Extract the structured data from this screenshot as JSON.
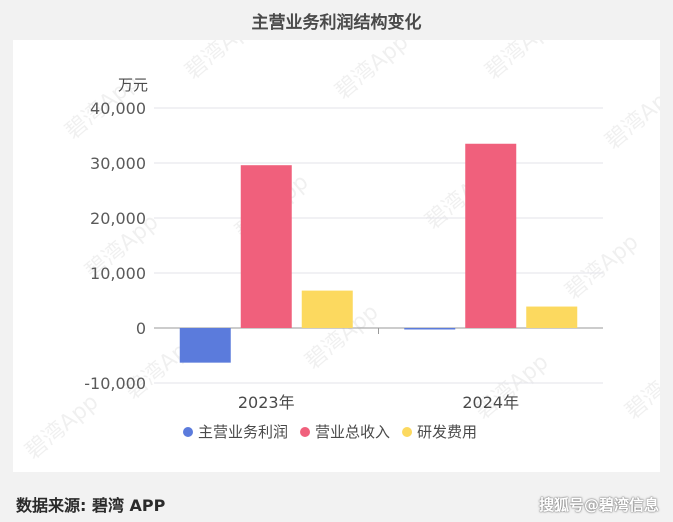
{
  "chart_data": {
    "type": "bar",
    "title": "主营业务利润结构变化",
    "ylabel": "万元",
    "categories": [
      "2023年",
      "2024年"
    ],
    "series": [
      {
        "name": "主营业务利润",
        "color": "#5b7bdc",
        "values": [
          -6300,
          -250
        ]
      },
      {
        "name": "营业总收入",
        "color": "#f0607c",
        "values": [
          29600,
          33500
        ]
      },
      {
        "name": "研发费用",
        "color": "#fcd95f",
        "values": [
          6800,
          3900
        ]
      }
    ],
    "ylim": [
      -10000,
      40000
    ],
    "yticks": [
      -10000,
      0,
      10000,
      20000,
      30000,
      40000
    ],
    "ytick_labels": [
      "-10,000",
      "0",
      "10,000",
      "20,000",
      "30,000",
      "40,000"
    ],
    "grid": true,
    "legend_position": "bottom"
  },
  "watermark": "碧湾App",
  "footer": {
    "source": "数据来源: 碧湾 APP",
    "credit": "搜狐号@碧湾信息"
  }
}
